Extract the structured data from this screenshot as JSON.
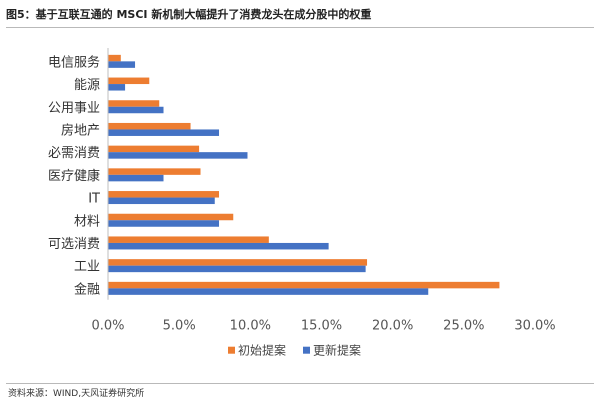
{
  "header": {
    "title": "图5：基于互联互通的 MSCI 新机制大幅提升了消费龙头在成分股中的权重"
  },
  "footer": {
    "source": "资料来源：WIND,天风证券研究所"
  },
  "chart_data": {
    "type": "bar",
    "orientation": "horizontal",
    "title": "",
    "xlabel": "",
    "ylabel": "",
    "categories": [
      "电信服务",
      "能源",
      "公用事业",
      "房地产",
      "必需消费",
      "医疗健康",
      "IT",
      "材料",
      "可选消费",
      "工业",
      "金融"
    ],
    "series": [
      {
        "name": "初始提案",
        "color": "#ED7D31",
        "values": [
          0.9,
          2.9,
          3.6,
          5.8,
          6.4,
          6.5,
          7.8,
          8.8,
          11.3,
          18.2,
          27.5
        ]
      },
      {
        "name": "更新提案",
        "color": "#4472C4",
        "values": [
          1.9,
          1.2,
          3.9,
          7.8,
          9.8,
          3.9,
          7.5,
          7.8,
          15.5,
          18.1,
          22.5
        ]
      }
    ],
    "xlim": [
      0,
      30
    ],
    "ticks": [
      "0.0%",
      "5.0%",
      "10.0%",
      "15.0%",
      "20.0%",
      "25.0%",
      "30.0%"
    ],
    "grid": false,
    "legend_position": "bottom"
  }
}
